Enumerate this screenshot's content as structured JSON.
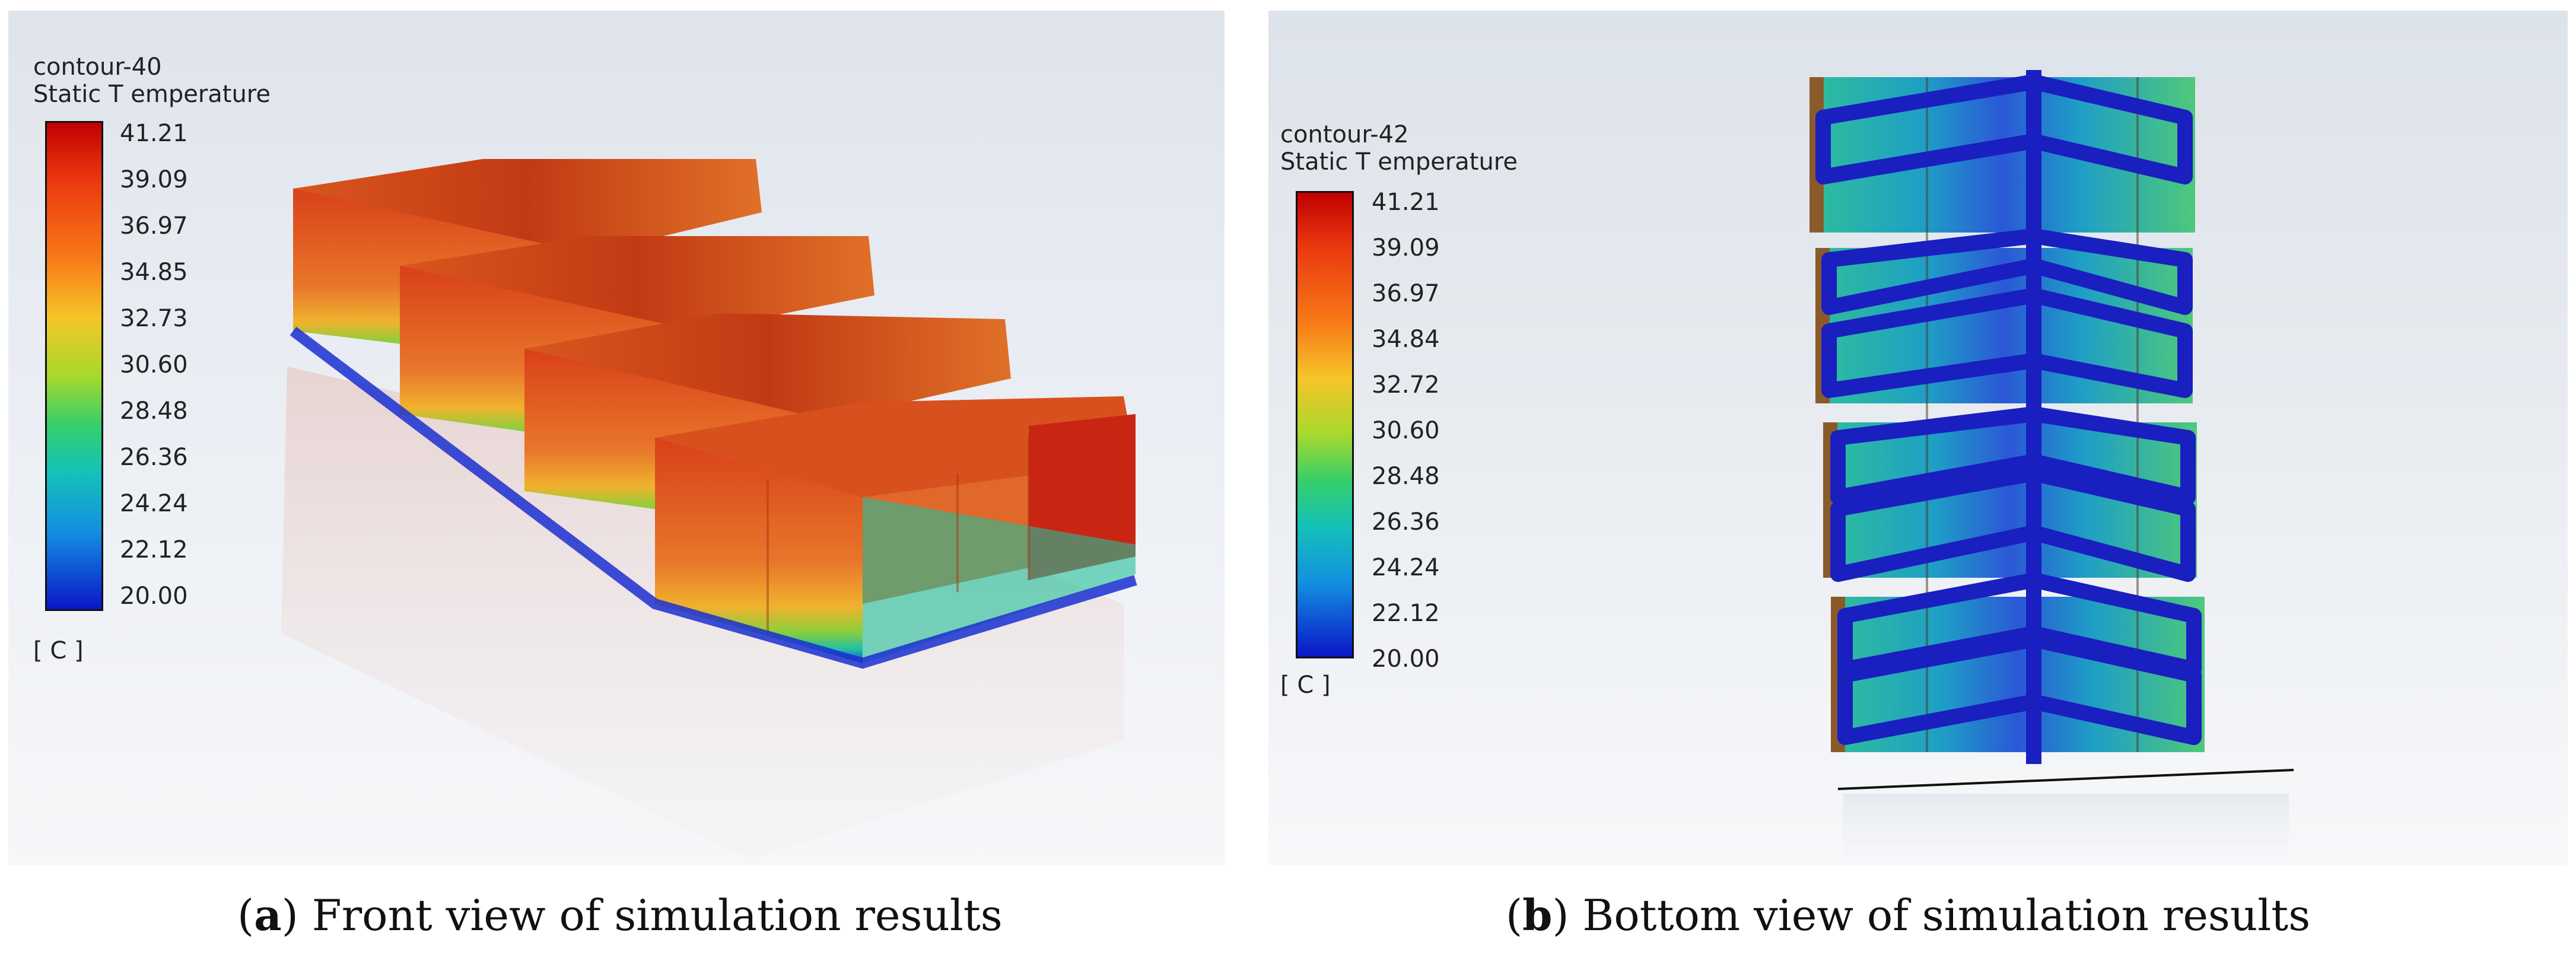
{
  "panels": [
    {
      "id": "a",
      "contour_name": "contour-40",
      "variable": "Static T emperature",
      "ticks": [
        "41.21",
        "39.09",
        "36.97",
        "34.85",
        "32.73",
        "30.60",
        "28.48",
        "26.36",
        "24.24",
        "22.12",
        "20.00"
      ],
      "unit": "[ C ]",
      "caption_letter": "a",
      "caption_text": " Front view of simulation results"
    },
    {
      "id": "b",
      "contour_name": "contour-42",
      "variable": "Static T emperature",
      "ticks": [
        "41.21",
        "39.09",
        "36.97",
        "34.84",
        "32.72",
        "30.60",
        "28.48",
        "26.36",
        "24.24",
        "22.12",
        "20.00"
      ],
      "unit": "[ C ]",
      "caption_letter": "b",
      "caption_text": " Bottom view of simulation results"
    }
  ],
  "colors": {
    "hot": "#c00000",
    "warm": "#e86a1c",
    "mid": "#f6c52a",
    "cool": "#14c1b9",
    "cold": "#0a16c8",
    "channel": "#1a1fc0"
  }
}
